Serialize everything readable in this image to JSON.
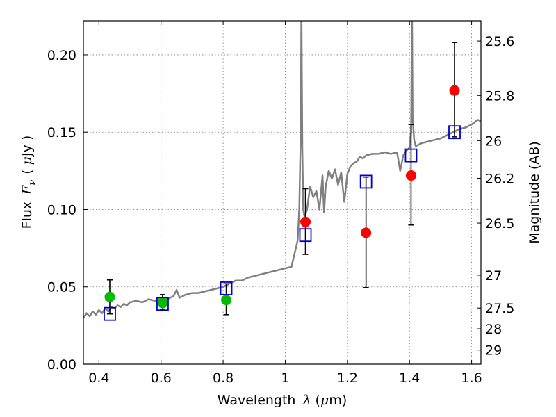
{
  "chart_data": {
    "type": "scatter",
    "xlabel": {
      "main": "Wavelength",
      "symbol": "λ",
      "unit_open": "(",
      "unit_mu": "μ",
      "unit_rest": "m)"
    },
    "ylabel": {
      "main": "Flux",
      "symbol": "F",
      "sub": "ν",
      "unit_open": "(",
      "unit_mu": "μ",
      "unit_rest": "Jy",
      "unit_close": ")"
    },
    "ylabel_right": "Magnitude (AB)",
    "xlim": [
      0.35,
      1.63
    ],
    "ylim": [
      0.0,
      0.222
    ],
    "grid": true,
    "xticks": [
      {
        "value": 0.4,
        "label": "0.4"
      },
      {
        "value": 0.6,
        "label": "0.6"
      },
      {
        "value": 0.8,
        "label": "0.8"
      },
      {
        "value": 1.0,
        "label": "1"
      },
      {
        "value": 1.2,
        "label": "1.2"
      },
      {
        "value": 1.4,
        "label": "1.4"
      },
      {
        "value": 1.6,
        "label": "1.6"
      }
    ],
    "yticks": [
      {
        "value": 0.0,
        "label": "0.00"
      },
      {
        "value": 0.05,
        "label": "0.05"
      },
      {
        "value": 0.1,
        "label": "0.10"
      },
      {
        "value": 0.15,
        "label": "0.15"
      },
      {
        "value": 0.2,
        "label": "0.20"
      }
    ],
    "yticks_right": [
      {
        "label": "25.6"
      },
      {
        "label": "25.8"
      },
      {
        "label": "26"
      },
      {
        "label": "26.2"
      },
      {
        "label": "26.5"
      },
      {
        "label": "27"
      },
      {
        "label": "27.5"
      },
      {
        "label": "28"
      },
      {
        "label": "29"
      }
    ],
    "colors": {
      "spectrum": "#808080",
      "green": "#00bb00",
      "red": "#ff0000",
      "model": "#0000cc",
      "errorbar": "#000000",
      "grid": "#777777"
    },
    "series": [
      {
        "type": "line",
        "x": [
          0.35,
          0.36,
          0.37,
          0.38,
          0.39,
          0.4,
          0.41,
          0.42,
          0.43,
          0.44,
          0.45,
          0.46,
          0.47,
          0.48,
          0.49,
          0.5,
          0.52,
          0.54,
          0.56,
          0.58,
          0.6,
          0.62,
          0.64,
          0.65,
          0.66,
          0.68,
          0.7,
          0.72,
          0.74,
          0.76,
          0.78,
          0.8,
          0.82,
          0.84,
          0.86,
          0.88,
          0.9,
          0.92,
          0.94,
          0.96,
          0.98,
          1.0,
          1.02,
          1.04,
          1.045,
          1.05,
          1.052,
          1.055,
          1.058,
          1.062,
          1.07,
          1.08,
          1.09,
          1.1,
          1.11,
          1.12,
          1.125,
          1.13,
          1.14,
          1.15,
          1.16,
          1.17,
          1.18,
          1.19,
          1.2,
          1.21,
          1.22,
          1.23,
          1.24,
          1.25,
          1.26,
          1.28,
          1.3,
          1.32,
          1.34,
          1.36,
          1.37,
          1.38,
          1.39,
          1.4,
          1.405,
          1.408,
          1.41,
          1.415,
          1.42,
          1.43,
          1.44,
          1.46,
          1.48,
          1.5,
          1.52,
          1.54,
          1.56,
          1.58,
          1.6,
          1.62,
          1.63
        ],
        "y": [
          0.03,
          0.033,
          0.031,
          0.034,
          0.032,
          0.035,
          0.033,
          0.036,
          0.034,
          0.037,
          0.036,
          0.038,
          0.037,
          0.039,
          0.038,
          0.04,
          0.041,
          0.04,
          0.042,
          0.041,
          0.043,
          0.042,
          0.044,
          0.048,
          0.043,
          0.045,
          0.046,
          0.046,
          0.047,
          0.048,
          0.049,
          0.05,
          0.052,
          0.054,
          0.054,
          0.056,
          0.057,
          0.058,
          0.059,
          0.06,
          0.061,
          0.062,
          0.063,
          0.08,
          0.1,
          0.15,
          0.23,
          0.14,
          0.1,
          0.095,
          0.1,
          0.115,
          0.108,
          0.112,
          0.1,
          0.122,
          0.098,
          0.115,
          0.125,
          0.12,
          0.126,
          0.116,
          0.124,
          0.105,
          0.123,
          0.128,
          0.13,
          0.131,
          0.134,
          0.133,
          0.135,
          0.136,
          0.136,
          0.137,
          0.136,
          0.137,
          0.125,
          0.135,
          0.138,
          0.14,
          0.15,
          0.23,
          0.16,
          0.145,
          0.141,
          0.142,
          0.143,
          0.144,
          0.145,
          0.146,
          0.148,
          0.15,
          0.152,
          0.153,
          0.155,
          0.158,
          0.157
        ]
      },
      {
        "type": "points",
        "marker": "circle",
        "color": "green",
        "points": [
          {
            "x": 0.435,
            "y": 0.0435,
            "yerr_low": 0.0325,
            "yerr_high": 0.0545
          },
          {
            "x": 0.605,
            "y": 0.0395,
            "yerr_low": 0.0355,
            "yerr_high": 0.045
          },
          {
            "x": 0.81,
            "y": 0.0415,
            "yerr_low": 0.032,
            "yerr_high": 0.052
          }
        ]
      },
      {
        "type": "points",
        "marker": "circle",
        "color": "red",
        "points": [
          {
            "x": 1.065,
            "y": 0.092,
            "yerr_low": 0.071,
            "yerr_high": 0.1135
          },
          {
            "x": 1.26,
            "y": 0.085,
            "yerr_low": 0.0495,
            "yerr_high": 0.121
          },
          {
            "x": 1.405,
            "y": 0.122,
            "yerr_low": 0.09,
            "yerr_high": 0.155
          },
          {
            "x": 1.545,
            "y": 0.177,
            "yerr_low": 0.147,
            "yerr_high": 0.208
          }
        ]
      },
      {
        "type": "points",
        "marker": "square",
        "color": "model",
        "points": [
          {
            "x": 0.435,
            "y": 0.0325
          },
          {
            "x": 0.605,
            "y": 0.039
          },
          {
            "x": 0.81,
            "y": 0.049
          },
          {
            "x": 1.065,
            "y": 0.0835
          },
          {
            "x": 1.26,
            "y": 0.118
          },
          {
            "x": 1.405,
            "y": 0.135
          },
          {
            "x": 1.545,
            "y": 0.15
          }
        ]
      }
    ]
  }
}
